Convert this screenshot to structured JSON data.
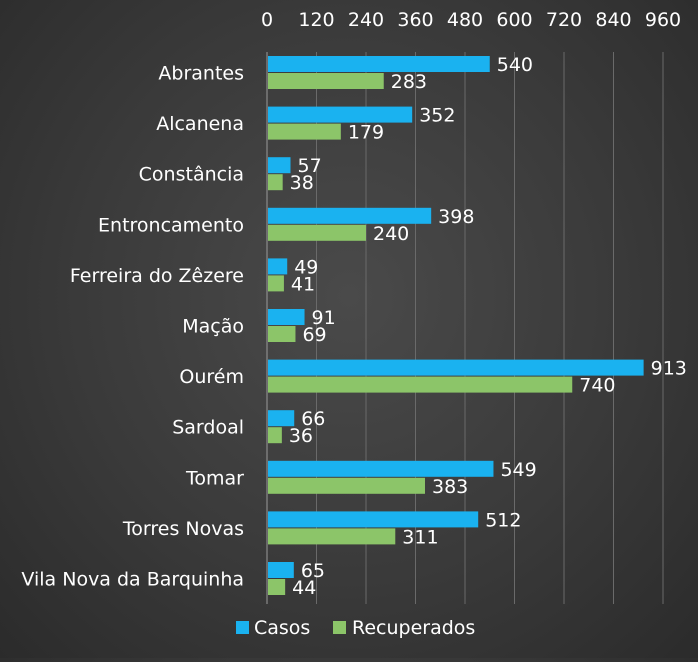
{
  "chart_data": {
    "type": "bar",
    "orientation": "horizontal",
    "x_axis_position": "top",
    "categories": [
      "Abrantes",
      "Alcanena",
      "Constância",
      "Entroncamento",
      "Ferreira do Zêzere",
      "Mação",
      "Ourém",
      "Sardoal",
      "Tomar",
      "Torres Novas",
      "Vila Nova da Barquinha"
    ],
    "series": [
      {
        "name": "Casos",
        "color": "#1ab2f0",
        "values": [
          540,
          352,
          57,
          398,
          49,
          91,
          913,
          66,
          549,
          512,
          65
        ]
      },
      {
        "name": "Recuperados",
        "color": "#8cc569",
        "values": [
          283,
          179,
          38,
          240,
          41,
          69,
          740,
          36,
          383,
          311,
          44
        ]
      }
    ],
    "xlim": [
      0,
      960
    ],
    "xticks": [
      0,
      120,
      240,
      360,
      480,
      600,
      720,
      840,
      960
    ],
    "grid": true,
    "data_labels": true,
    "legend_position": "bottom",
    "colors": {
      "background": "#3a3a3a",
      "grid": "#6a6a6a",
      "text": "#ffffff"
    }
  }
}
